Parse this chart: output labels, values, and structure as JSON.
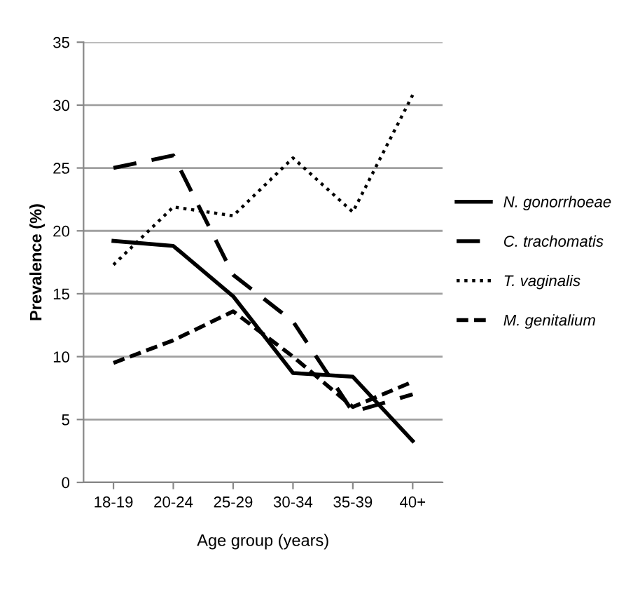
{
  "chart_data": {
    "type": "line",
    "xlabel": "Age group (years)",
    "ylabel": "Prevalence (%)",
    "categories": [
      "18-19",
      "20-24",
      "25-29",
      "30-34",
      "35-39",
      "40+"
    ],
    "series": [
      {
        "name": "N. gonorrhoeae",
        "color": "#000000",
        "line_style": "solid",
        "values": [
          19.2,
          18.8,
          14.8,
          8.7,
          8.4,
          3.3
        ]
      },
      {
        "name": "C. trachomatis",
        "color": "#000000",
        "line_style": "dashed",
        "values": [
          25,
          26,
          16.5,
          12.8,
          5.6,
          7
        ]
      },
      {
        "name": "T. vaginalis",
        "color": "#000000",
        "line_style": "dotted",
        "values": [
          17.3,
          21.9,
          21.2,
          25.8,
          21.5,
          30.8
        ]
      },
      {
        "name": "M. genitalium",
        "color": "#000000",
        "line_style": "dashed",
        "values": [
          9.5,
          11.3,
          13.6,
          10,
          6,
          8
        ]
      }
    ],
    "ylim": [
      0,
      35
    ],
    "yticks": [
      0,
      5,
      10,
      15,
      20,
      25,
      30,
      35
    ],
    "grid": "y",
    "legend": "right",
    "marker": "none"
  }
}
